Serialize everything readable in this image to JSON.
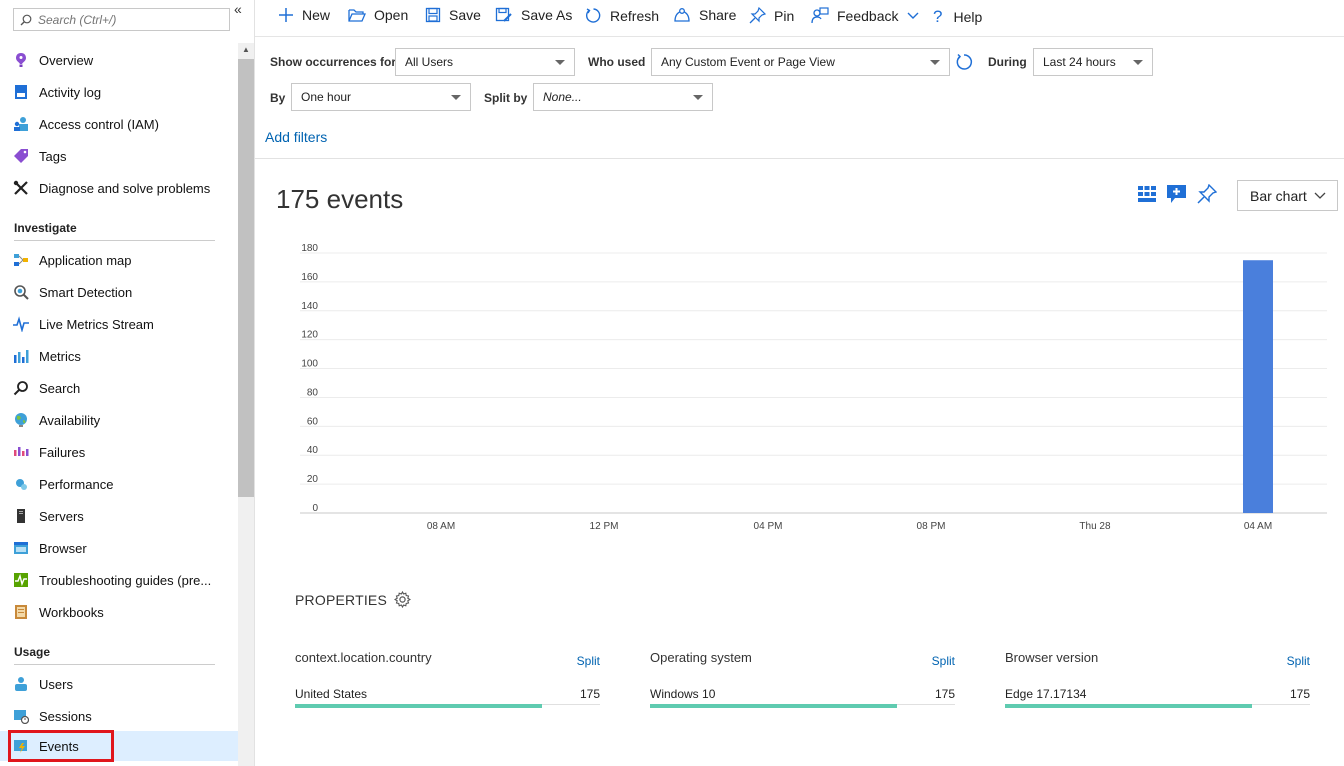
{
  "sidebar": {
    "search_placeholder": "Search (Ctrl+/)",
    "collapse_glyph": "«",
    "items_top": [
      {
        "label": "Overview",
        "icon": "overview-icon"
      },
      {
        "label": "Activity log",
        "icon": "activity-log-icon"
      },
      {
        "label": "Access control (IAM)",
        "icon": "iam-icon"
      },
      {
        "label": "Tags",
        "icon": "tag-icon"
      },
      {
        "label": "Diagnose and solve problems",
        "icon": "tools-icon"
      }
    ],
    "investigate_title": "Investigate",
    "items_investigate": [
      {
        "label": "Application map"
      },
      {
        "label": "Smart Detection"
      },
      {
        "label": "Live Metrics Stream"
      },
      {
        "label": "Metrics"
      },
      {
        "label": "Search"
      },
      {
        "label": "Availability"
      },
      {
        "label": "Failures"
      },
      {
        "label": "Performance"
      },
      {
        "label": "Servers"
      },
      {
        "label": "Browser"
      },
      {
        "label": "Troubleshooting guides (pre..."
      },
      {
        "label": "Workbooks"
      }
    ],
    "usage_title": "Usage",
    "items_usage": [
      {
        "label": "Users"
      },
      {
        "label": "Sessions"
      },
      {
        "label": "Events"
      }
    ],
    "selected_item": "Events",
    "highlight_color": "#e0161c"
  },
  "toolbar": {
    "new": "New",
    "open": "Open",
    "save": "Save",
    "save_as": "Save As",
    "refresh": "Refresh",
    "share": "Share",
    "pin": "Pin",
    "feedback": "Feedback",
    "help": "Help"
  },
  "filters": {
    "show_occurrences_label": "Show occurrences for",
    "show_occurrences_value": "All Users",
    "who_used_label": "Who used",
    "who_used_value": "Any Custom Event or Page View",
    "during_label": "During",
    "during_value": "Last 24 hours",
    "by_label": "By",
    "by_value": "One hour",
    "split_by_label": "Split by",
    "split_by_value": "None...",
    "add_filters": "Add filters"
  },
  "chart_header": {
    "events_count": "175 events",
    "chart_type": "Bar chart"
  },
  "chart_data": {
    "type": "bar",
    "x_tick_labels": [
      "08 AM",
      "12 PM",
      "04 PM",
      "08 PM",
      "Thu 28",
      "04 AM"
    ],
    "y_ticks": [
      0,
      20,
      40,
      60,
      80,
      100,
      120,
      140,
      160,
      180
    ],
    "ylim": [
      0,
      180
    ],
    "bars": [
      {
        "x": "04 AM",
        "value": 175
      }
    ],
    "bar_color": "#4a7fdc",
    "grid": true,
    "title": "",
    "xlabel": "",
    "ylabel": ""
  },
  "properties": {
    "title": "PROPERTIES",
    "split_label": "Split",
    "items": [
      {
        "name": "context.location.country",
        "row_label": "United States",
        "row_value": "175",
        "fill_fraction": 0.81
      },
      {
        "name": "Operating system",
        "row_label": "Windows 10",
        "row_value": "175",
        "fill_fraction": 0.81
      },
      {
        "name": "Browser version",
        "row_label": "Edge 17.17134",
        "row_value": "175",
        "fill_fraction": 0.81
      }
    ],
    "bar_color": "#5fcbb0"
  }
}
